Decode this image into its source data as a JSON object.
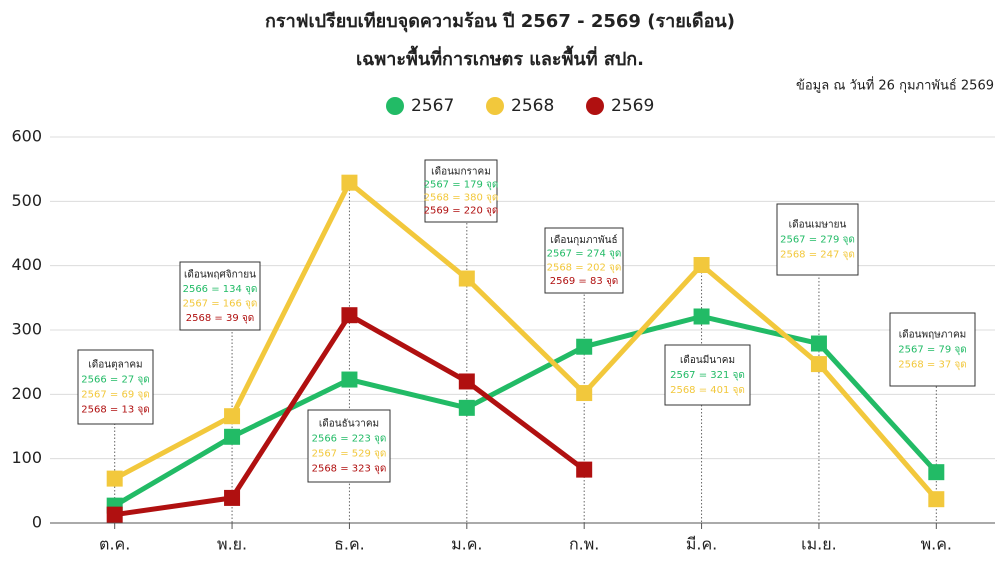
{
  "chart_data": {
    "type": "line",
    "title": "กราฟเปรียบเทียบจุดความร้อน ปี 2567 - 2569 (รายเดือน)",
    "subtitle": "เฉพาะพื้นที่การเกษตร และพื้นที่ สปก.",
    "source": "ข้อมูล ณ วันที่ 26 กุมภาพันธ์ 2569",
    "categories": [
      "ต.ค.",
      "พ.ย.",
      "ธ.ค.",
      "ม.ค.",
      "ก.พ.",
      "มี.ค.",
      "เม.ย.",
      "พ.ค."
    ],
    "series": [
      {
        "name": "2567",
        "color": "#22bb66",
        "values": [
          27,
          134,
          223,
          179,
          274,
          321,
          279,
          79
        ]
      },
      {
        "name": "2568",
        "color": "#f2c83c",
        "values": [
          69,
          166,
          529,
          380,
          202,
          401,
          247,
          37
        ]
      },
      {
        "name": "2569",
        "color": "#b01010",
        "values": [
          13,
          39,
          323,
          220,
          83,
          null,
          null,
          null
        ]
      }
    ],
    "ylim": [
      0,
      600
    ],
    "yticks": [
      0,
      100,
      200,
      300,
      400,
      500,
      600
    ],
    "grid": true,
    "annotations": [
      {
        "title": "เดือนตุลาคม",
        "lines": [
          "2566 = 27 จุด",
          "2567 = 69 จุด",
          "2568 = 13 จุด"
        ]
      },
      {
        "title": "เดือนพฤศจิกายน",
        "lines": [
          "2566 = 134 จุด",
          "2567 = 166 จุด",
          "2568 = 39 จุด"
        ]
      },
      {
        "title": "เดือนธันวาคม",
        "lines": [
          "2566 = 223 จุด",
          "2567 = 529 จุด",
          "2568 = 323 จุด"
        ]
      },
      {
        "title": "เดือนมกราคม",
        "lines": [
          "2567 = 179 จุด",
          "2568 = 380 จุด",
          "2569 = 220 จุด"
        ]
      },
      {
        "title": "เดือนกุมภาพันธ์",
        "lines": [
          "2567 = 274 จุด",
          "2568 = 202 จุด",
          "2569 = 83 จุด"
        ]
      },
      {
        "title": "เดือนมีนาคม",
        "lines": [
          "2567 = 321 จุด",
          "2568 = 401 จุด"
        ]
      },
      {
        "title": "เดือนเมษายน",
        "lines": [
          "2567 = 279 จุด",
          "2568 = 247 จุด"
        ]
      },
      {
        "title": "เดือนพฤษภาคม",
        "lines": [
          "2567 = 79 จุด",
          "2568 = 37 จุด"
        ]
      }
    ]
  }
}
